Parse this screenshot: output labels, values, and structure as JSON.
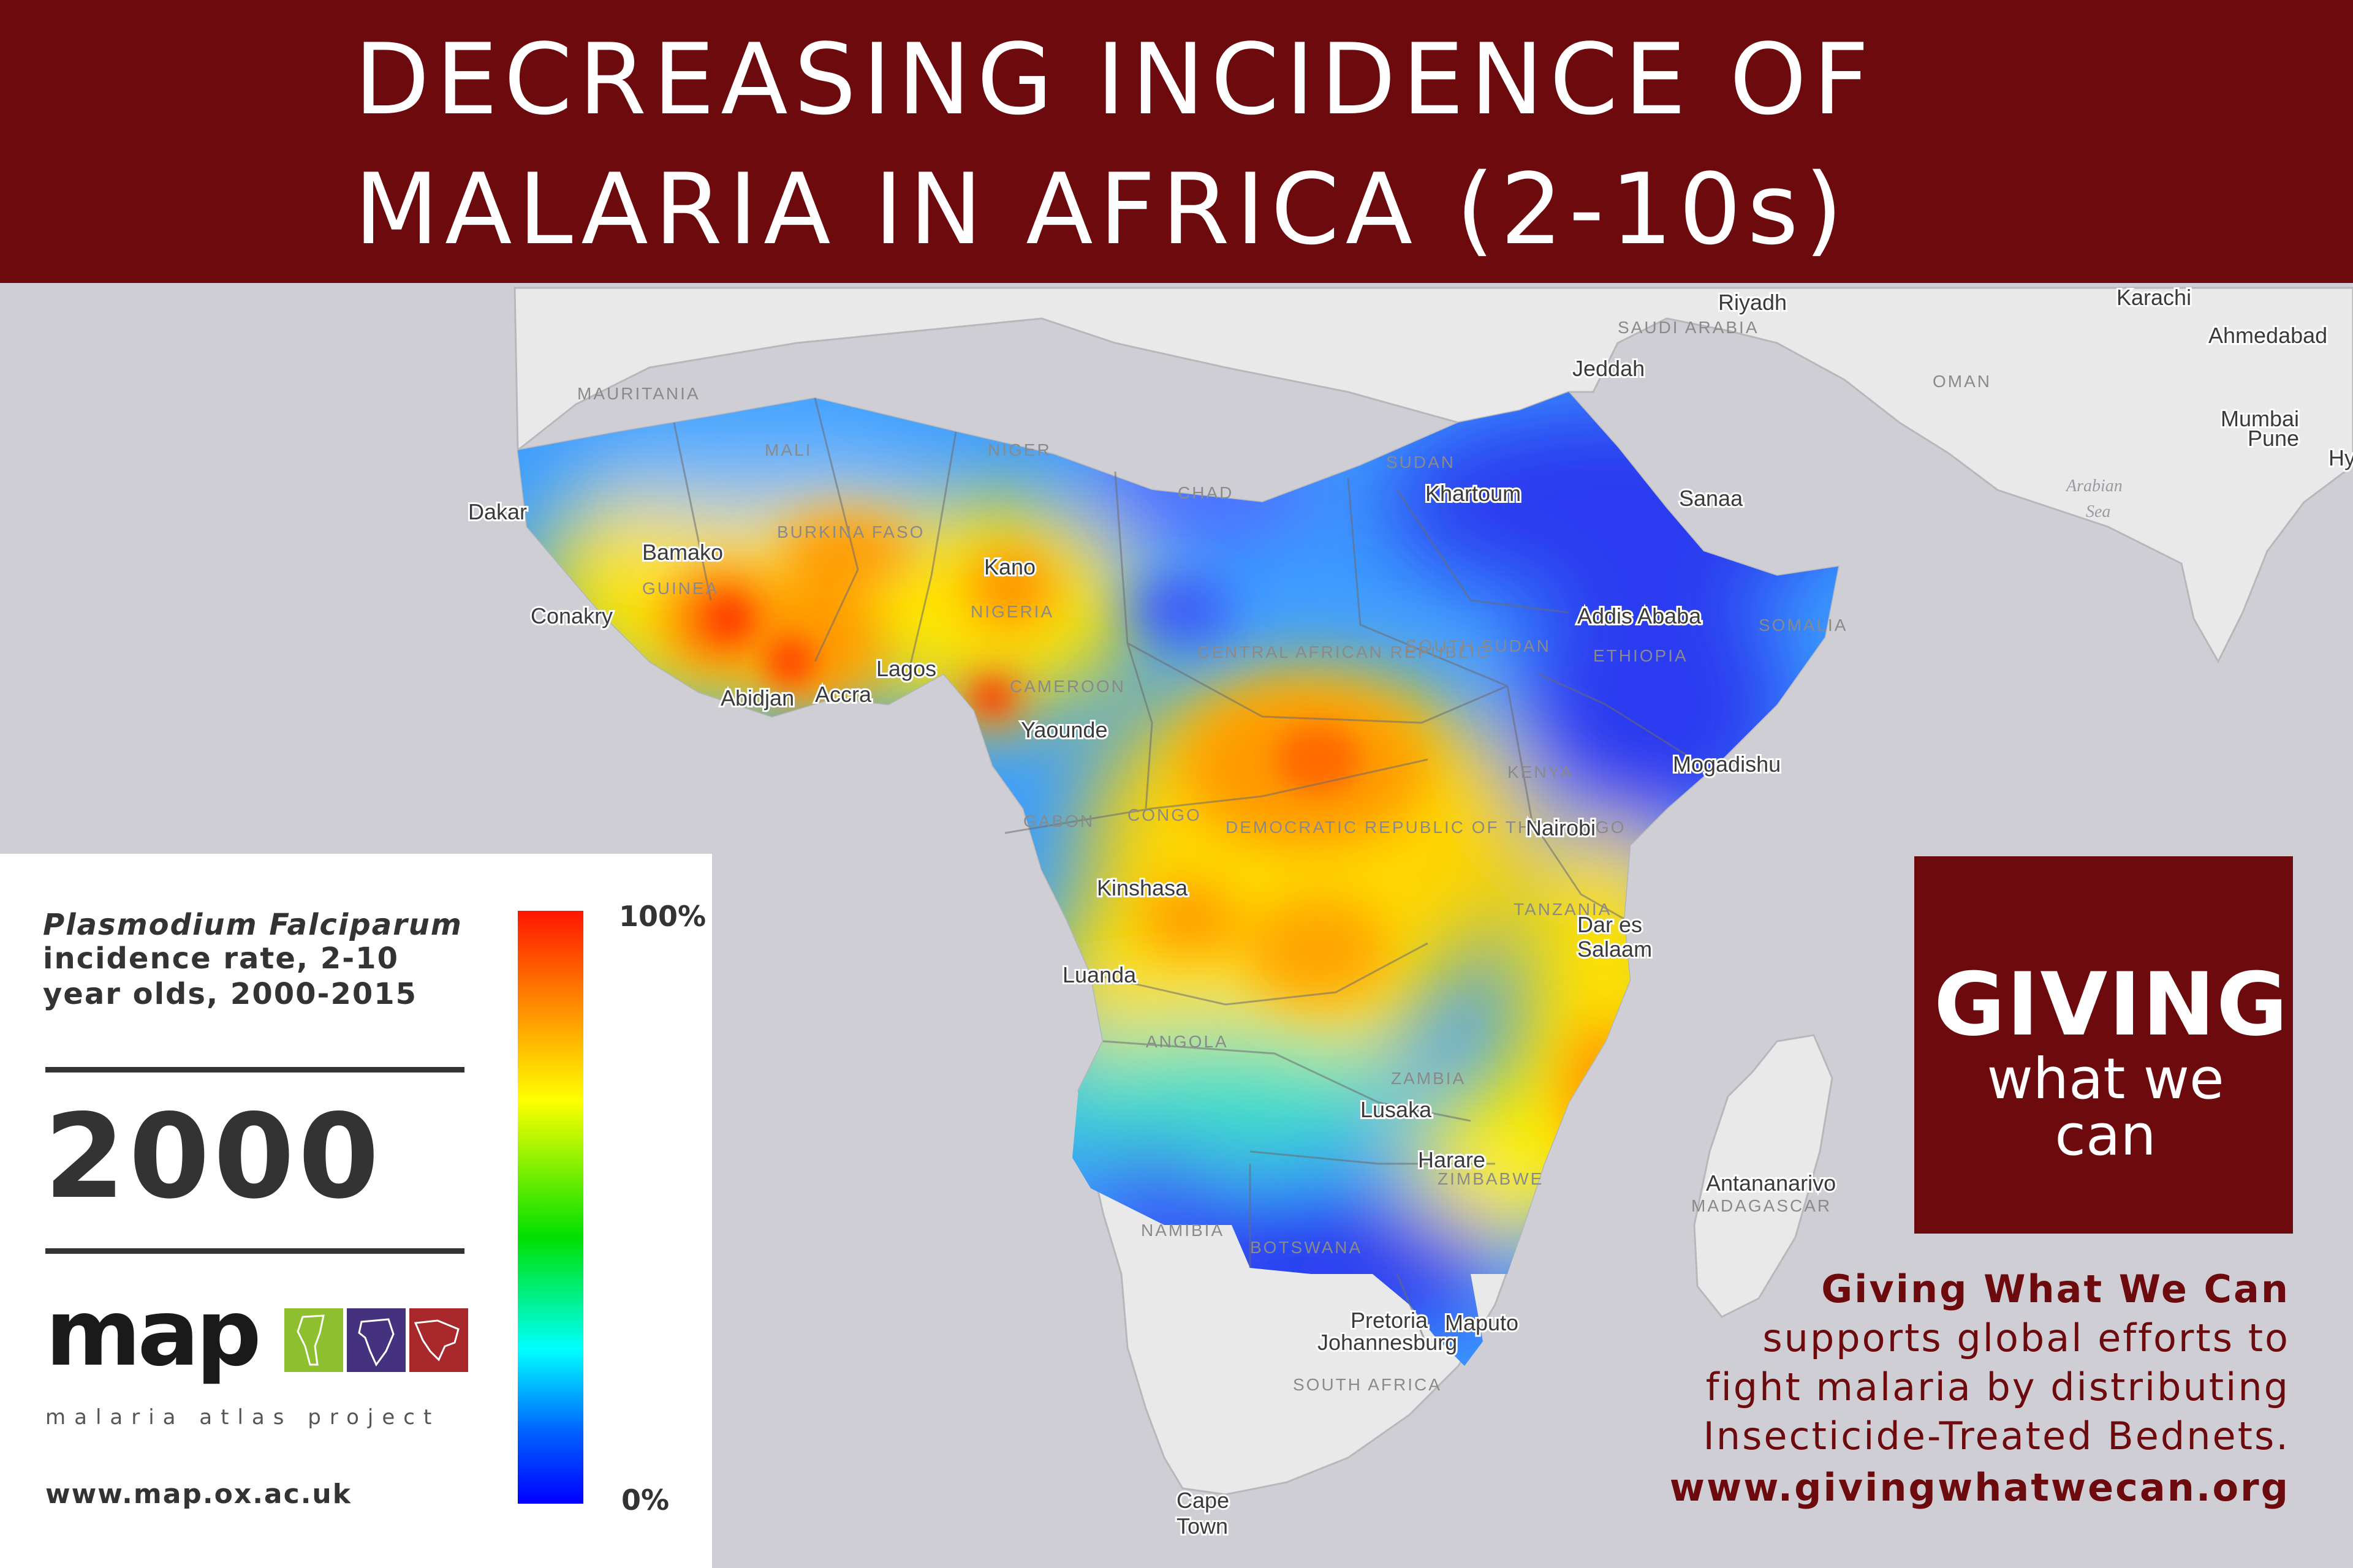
{
  "title": {
    "line1": "DECREASING INCIDENCE OF",
    "line2": "MALARIA IN AFRICA (2-10s)"
  },
  "map": {
    "cities": [
      "Riyadh",
      "Karachi",
      "Ahmedabad",
      "Jeddah",
      "Mumbai",
      "Pune",
      "Hy",
      "Sanaa",
      "Khartoum",
      "Dakar",
      "Bamako",
      "Kano",
      "Conakry",
      "Addis Ababa",
      "Lagos",
      "Abidjan",
      "Accra",
      "Yaounde",
      "Mogadishu",
      "Nairobi",
      "Kinshasa",
      "Dar es",
      "Salaam",
      "Luanda",
      "Lusaka",
      "Harare",
      "Antananarivo",
      "Pretoria",
      "Johannesburg",
      "Maputo",
      "Cape",
      "Town"
    ],
    "countries": [
      "SAUDI ARABIA",
      "OMAN",
      "MAURITANIA",
      "MALI",
      "NIGER",
      "CHAD",
      "SUDAN",
      "GUINEA",
      "NIGERIA",
      "BURKINA FASO",
      "CENTRAL AFRICAN REPUBLIC",
      "CAMEROON",
      "SOUTH SUDAN",
      "GABON",
      "CONGO",
      "DEMOCRATIC REPUBLIC OF THE CONGO",
      "KENYA",
      "TANZANIA",
      "ANGOLA",
      "ZAMBIA",
      "ZIMBABWE",
      "NAMIBIA",
      "BOTSWANA",
      "MADAGASCAR",
      "SOUTH AFRICA",
      "SOMALIA",
      "ETHIOPIA"
    ],
    "seas": [
      "Arabian",
      "Sea"
    ]
  },
  "legend": {
    "species": "Plasmodium Falciparum",
    "description": "incidence rate, 2-10 year olds, 2000-2015",
    "year": "2000",
    "scale_max": "100%",
    "scale_min": "0%",
    "logo_text": "map",
    "logo_subtitle": "malaria atlas project",
    "url": "www.map.ox.ac.uk"
  },
  "gwwc": {
    "logo_line1": "GIVING",
    "logo_line2": "what we can",
    "promo_heading": "Giving What We Can",
    "promo_line1": "supports  global efforts to",
    "promo_line2": "fight malaria by distributing",
    "promo_line3": "Insecticide-Treated Bednets.",
    "promo_url": "www.givingwhatwecan.org"
  },
  "colors": {
    "banner": "#6d0a0e",
    "ocean": "#cfced4",
    "land": "#e9e9ea",
    "high_incidence": "#ff1500",
    "low_incidence": "#2a3af0"
  }
}
